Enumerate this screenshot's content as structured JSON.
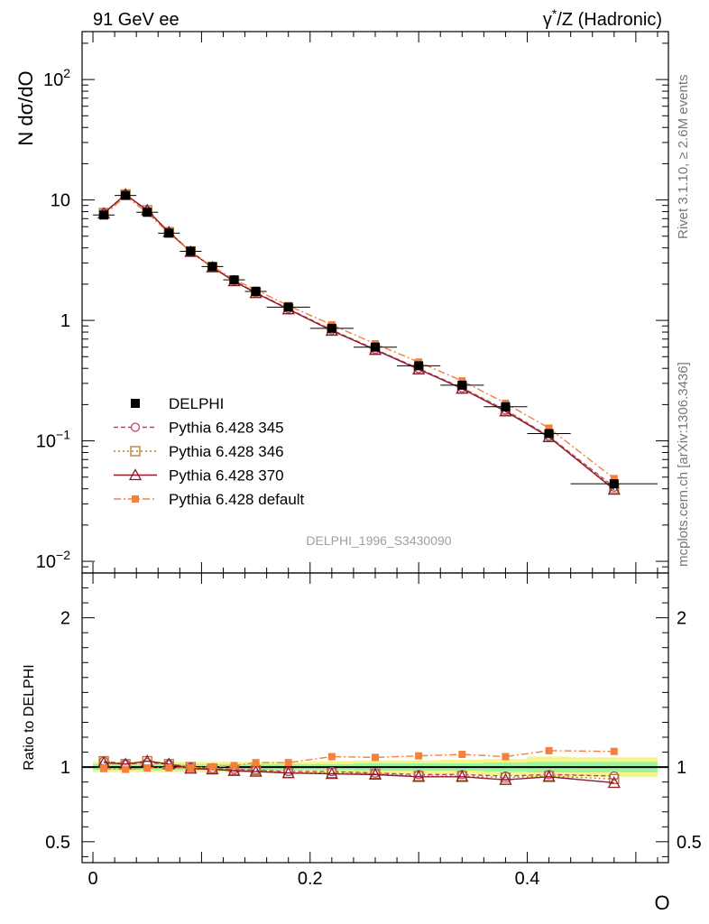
{
  "header": {
    "left": "91 GeV ee",
    "right_base": "γ",
    "right_sup": "*",
    "right_rest": "/Z (Hadronic)"
  },
  "side_labels": {
    "rivet": "Rivet 3.1.10, ≥ 2.6M events",
    "mcplots": "mcplots.cern.ch [arXiv:1306.3436]"
  },
  "analysis_id": "DELPHI_1996_S3430090",
  "chart_data": {
    "type": "line",
    "ylabel_top": "N dσ/dO",
    "ylabel_bottom": "Ratio to DELPHI",
    "xlabel": "O",
    "xlim": [
      -0.01,
      0.53
    ],
    "ylim_top_log": [
      0.008,
      250
    ],
    "ylim_bottom": [
      0.36,
      2.3
    ],
    "x_ticks": [
      {
        "v": 0,
        "label": "0"
      },
      {
        "v": 0.2,
        "label": "0.2"
      },
      {
        "v": 0.4,
        "label": "0.4"
      }
    ],
    "y_ticks_top": [
      {
        "v": 0.01,
        "base": "10",
        "exp": "−2"
      },
      {
        "v": 0.1,
        "base": "10",
        "exp": "−1"
      },
      {
        "v": 1,
        "base": "1",
        "exp": ""
      },
      {
        "v": 10,
        "base": "10",
        "exp": ""
      },
      {
        "v": 100,
        "base": "10",
        "exp": "2"
      }
    ],
    "y_ticks_bottom": [
      {
        "v": 0.5,
        "label": "0.5"
      },
      {
        "v": 1,
        "label": "1"
      },
      {
        "v": 2,
        "label": "2"
      }
    ],
    "x": [
      0.01,
      0.03,
      0.05,
      0.07,
      0.09,
      0.11,
      0.13,
      0.15,
      0.18,
      0.22,
      0.26,
      0.3,
      0.34,
      0.38,
      0.42,
      0.48
    ],
    "bin_edges": [
      0.0,
      0.02,
      0.04,
      0.06,
      0.08,
      0.1,
      0.12,
      0.14,
      0.16,
      0.2,
      0.24,
      0.28,
      0.32,
      0.36,
      0.4,
      0.44,
      0.52
    ],
    "data": {
      "name": "DELPHI",
      "values": [
        7.5,
        10.9,
        7.9,
        5.3,
        3.75,
        2.8,
        2.17,
        1.74,
        1.29,
        0.86,
        0.6,
        0.42,
        0.29,
        0.192,
        0.115,
        0.044
      ],
      "band_inner": [
        0.02,
        0.02,
        0.02,
        0.02,
        0.02,
        0.02,
        0.02,
        0.02,
        0.02,
        0.02,
        0.025,
        0.025,
        0.025,
        0.03,
        0.035,
        0.035
      ],
      "band_outer": [
        0.035,
        0.035,
        0.035,
        0.035,
        0.035,
        0.035,
        0.035,
        0.035,
        0.035,
        0.04,
        0.045,
        0.045,
        0.05,
        0.055,
        0.07,
        0.065
      ]
    },
    "series": [
      {
        "name": "Pythia 6.428 345",
        "color": "#c0406a",
        "marker": "circle",
        "dash": "5,3",
        "ratio": [
          1.04,
          1.02,
          1.03,
          1.02,
          1.0,
          0.99,
          0.985,
          0.98,
          0.97,
          0.97,
          0.96,
          0.95,
          0.95,
          0.94,
          0.95,
          0.94
        ]
      },
      {
        "name": "Pythia 6.428 346",
        "color": "#b07832",
        "marker": "square-open",
        "dash": "2,3",
        "ratio": [
          1.04,
          1.02,
          1.04,
          1.02,
          1.0,
          0.99,
          0.98,
          0.98,
          0.96,
          0.96,
          0.955,
          0.94,
          0.94,
          0.93,
          0.94,
          0.92
        ]
      },
      {
        "name": "Pythia 6.428 370",
        "color": "#8c1a2c",
        "marker": "triangle",
        "dash": "",
        "ratio": [
          1.03,
          1.02,
          1.04,
          1.02,
          0.99,
          0.985,
          0.975,
          0.97,
          0.96,
          0.955,
          0.95,
          0.935,
          0.935,
          0.915,
          0.935,
          0.895
        ]
      },
      {
        "name": "Pythia 6.428 default",
        "color": "#f5803a",
        "marker": "square-filled",
        "dash": "8,3,2,3",
        "ratio": [
          0.99,
          0.985,
          0.995,
          0.995,
          0.995,
          1.0,
          1.01,
          1.03,
          1.03,
          1.07,
          1.065,
          1.075,
          1.085,
          1.07,
          1.11,
          1.105
        ]
      }
    ]
  }
}
